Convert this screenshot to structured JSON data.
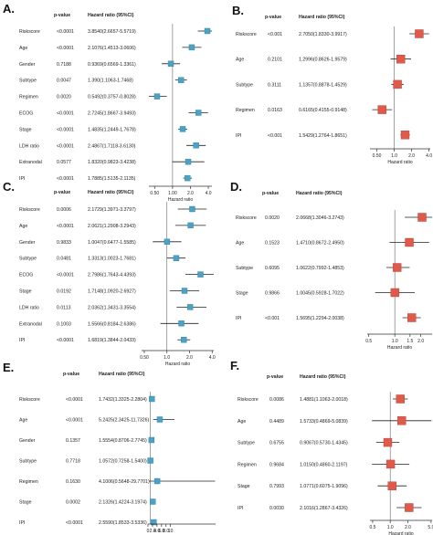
{
  "chart_data": [
    {
      "type": "forest",
      "panel_label": "A.",
      "header_p": "p-value",
      "header_hr": "Hazard ratio (95%CI)",
      "xlabel": "Hazard ratio",
      "scale": "log",
      "xlim": [
        0.4,
        4.6
      ],
      "ticks": [
        0.5,
        1.0,
        2.0,
        4.0
      ],
      "tick_labels": [
        "0.50",
        "1.00",
        "2.0",
        "4.0"
      ],
      "marker_color": "#4aa3c4",
      "rows": [
        {
          "label": "Riskscore",
          "p": "<0.0001",
          "hr_text": "3.8540(2.6657-5.5719)",
          "hr": 3.854,
          "lo": 2.6657,
          "hi": 5.5719
        },
        {
          "label": "Age",
          "p": "<0.0001",
          "hr_text": "2.1076(1.4513-3.0606)",
          "hr": 2.1076,
          "lo": 1.4513,
          "hi": 3.0606
        },
        {
          "label": "Gender",
          "p": "0.7188",
          "hr_text": "0.9369(0.6569-1.3361)",
          "hr": 0.9369,
          "lo": 0.6569,
          "hi": 1.3361
        },
        {
          "label": "Subtype",
          "p": "0.0047",
          "hr_text": "1.390(1.1063-1.7468)",
          "hr": 1.39,
          "lo": 1.1063,
          "hi": 1.7468
        },
        {
          "label": "Regimen",
          "p": "0.0020",
          "hr_text": "0.5492(0.3757-0.8028)",
          "hr": 0.5492,
          "lo": 0.3757,
          "hi": 0.8028
        },
        {
          "label": "ECOG",
          "p": "<0.0001",
          "hr_text": "2.7245(1.8667-3.9493)",
          "hr": 2.7245,
          "lo": 1.8667,
          "hi": 3.9493
        },
        {
          "label": "Stage",
          "p": "<0.0001",
          "hr_text": "1.4835(1.2449-1.7678)",
          "hr": 1.4835,
          "lo": 1.2449,
          "hi": 1.7678
        },
        {
          "label": "LDH ratio",
          "p": "<0.0001",
          "hr_text": "2.4867(1.7118-3.6130)",
          "hr": 2.4867,
          "lo": 1.7118,
          "hi": 3.613
        },
        {
          "label": "Extranodal",
          "p": "0.0577",
          "hr_text": "1.8320(0.9823-3.4238)",
          "hr": 1.832,
          "lo": 0.9823,
          "hi": 3.4238
        },
        {
          "label": "IPI",
          "p": "<0.0001",
          "hr_text": "1.7885(1.5135-2.1135)",
          "hr": 1.7885,
          "lo": 1.5135,
          "hi": 2.1135
        }
      ]
    },
    {
      "type": "forest",
      "panel_label": "B.",
      "header_p": "p-value",
      "header_hr": "Hazard ratio (95%CI)",
      "xlabel": "Hazard ratio",
      "scale": "log",
      "xlim": [
        0.38,
        4.2
      ],
      "ticks": [
        0.5,
        1.0,
        2.0,
        4.0
      ],
      "tick_labels": [
        "0.50",
        "1.0",
        "2.0",
        "4.0"
      ],
      "marker_color": "#e05a4c",
      "rows": [
        {
          "label": "Riskscore",
          "p": "<0.001",
          "hr_text": "2.7050(1.8330-3.9917)",
          "hr": 2.705,
          "lo": 1.833,
          "hi": 3.9917
        },
        {
          "label": "Age",
          "p": "0.2101",
          "hr_text": "1.2996(0.8626-1.9579)",
          "hr": 1.2996,
          "lo": 0.8626,
          "hi": 1.9579
        },
        {
          "label": "Subtype",
          "p": "0.3111",
          "hr_text": "1.1357(0.8878-1.4529)",
          "hr": 1.1357,
          "lo": 0.8878,
          "hi": 1.4529
        },
        {
          "label": "Regimen",
          "p": "0.0163",
          "hr_text": "0.6165(0.4155-0.9148)",
          "hr": 0.6165,
          "lo": 0.4155,
          "hi": 0.9148
        },
        {
          "label": "IPI",
          "p": "<0.001",
          "hr_text": "1.5429(1.2764-1.8651)",
          "hr": 1.5429,
          "lo": 1.2764,
          "hi": 1.8651
        }
      ]
    },
    {
      "type": "forest",
      "panel_label": "C.",
      "header_p": "p-value",
      "header_hr": "Hazard ratio (95%CI)",
      "xlabel": "Hazard ratio",
      "scale": "log",
      "xlim": [
        0.46,
        4.2
      ],
      "ticks": [
        0.5,
        1.0,
        2.0,
        4.0
      ],
      "tick_labels": [
        "0.50",
        "1.0",
        "2.0",
        "4.0"
      ],
      "marker_color": "#4aa3c4",
      "rows": [
        {
          "label": "Riskscore",
          "p": "0.0006",
          "hr_text": "2.1729(1.3971-3.3797)",
          "hr": 2.1729,
          "lo": 1.3971,
          "hi": 3.3797
        },
        {
          "label": "Age",
          "p": "<0.0001",
          "hr_text": "2.0621(1.2908-3.2943)",
          "hr": 2.0621,
          "lo": 1.2908,
          "hi": 3.2943
        },
        {
          "label": "Gender",
          "p": "0.9833",
          "hr_text": "1.0047(0.6477-1.5585)",
          "hr": 1.0047,
          "lo": 0.6477,
          "hi": 1.5585
        },
        {
          "label": "Subtype",
          "p": "0.0481",
          "hr_text": "1.3313(1.0023-1.7681)",
          "hr": 1.3313,
          "lo": 1.0023,
          "hi": 1.7681
        },
        {
          "label": "ECOG",
          "p": "<0.0001",
          "hr_text": "2.7986(1.7643-4.4393)",
          "hr": 2.7986,
          "lo": 1.7643,
          "hi": 4.4393
        },
        {
          "label": "Stage",
          "p": "0.0192",
          "hr_text": "1.7148(1.0920-2.6927)",
          "hr": 1.7148,
          "lo": 1.092,
          "hi": 2.6927
        },
        {
          "label": "LDH ratio",
          "p": "0.0113",
          "hr_text": "2.0362(1.3431-3.3554)",
          "hr": 2.0362,
          "lo": 1.3431,
          "hi": 3.3554
        },
        {
          "label": "Extranodal",
          "p": "0.1003",
          "hr_text": "1.5566(0.8184-2.6386)",
          "hr": 1.5566,
          "lo": 0.8184,
          "hi": 2.6386
        },
        {
          "label": "IPI",
          "p": "<0.0001",
          "hr_text": "1.6819(1.3844-2.0433)",
          "hr": 1.6819,
          "lo": 1.3844,
          "hi": 2.0433
        }
      ]
    },
    {
      "type": "forest",
      "panel_label": "D.",
      "header_p": "p-value",
      "header_hr": "Hazard ratio (95%CI)",
      "xlabel": "Hazard ratio",
      "scale": "log",
      "xlim": [
        0.48,
        2.7
      ],
      "ticks": [
        0.5,
        1.0,
        1.5,
        2.0
      ],
      "tick_labels": [
        "0.5",
        "1.0",
        "1.5",
        "2.0"
      ],
      "marker_color": "#e05a4c",
      "rows": [
        {
          "label": "Riskscore",
          "p": "0.0020",
          "hr_text": "2.0668(1.3046-3.2743)",
          "hr": 2.0668,
          "lo": 1.3046,
          "hi": 3.2743
        },
        {
          "label": "Age",
          "p": "0.1523",
          "hr_text": "1.4710(0.8672-2.4950)",
          "hr": 1.471,
          "lo": 0.8672,
          "hi": 2.495
        },
        {
          "label": "Subtype",
          "p": "0.6095",
          "hr_text": "1.0622(0.7992-1.4853)",
          "hr": 1.0622,
          "lo": 0.7992,
          "hi": 1.4853
        },
        {
          "label": "Stage",
          "p": "0.9866",
          "hr_text": "1.0045(0.5928-1.7022)",
          "hr": 1.0045,
          "lo": 0.5928,
          "hi": 1.7022
        },
        {
          "label": "IPI",
          "p": "<0.001",
          "hr_text": "1.5695(1.2294-2.0038)",
          "hr": 1.5695,
          "lo": 1.2294,
          "hi": 2.0038
        }
      ]
    },
    {
      "type": "forest",
      "panel_label": "E.",
      "header_p": "p-value",
      "header_hr": "Hazard ratio (95%CI)",
      "xlabel": "Hazard ratio",
      "scale": "linear",
      "xlim": [
        0,
        30
      ],
      "ticks": [
        0,
        2,
        4,
        6,
        8,
        10
      ],
      "tick_labels": [
        "0",
        "2.0",
        "4.0",
        "6.0",
        "8.0",
        "10"
      ],
      "marker_color": "#4aa3c4",
      "rows": [
        {
          "label": "Riskscore",
          "p": "<0.0001",
          "hr_text": "1.7432(1.3325-2.2804)",
          "hr": 1.7432,
          "lo": 1.3325,
          "hi": 2.2804
        },
        {
          "label": "Age",
          "p": "<0.0001",
          "hr_text": "5.2425(2.3425-11.7326)",
          "hr": 5.2425,
          "lo": 2.3425,
          "hi": 11.7326
        },
        {
          "label": "Gender",
          "p": "0.1357",
          "hr_text": "1.5554(0.8706-2.7745)",
          "hr": 1.5554,
          "lo": 0.8706,
          "hi": 2.7745
        },
        {
          "label": "Subtype",
          "p": "0.7718",
          "hr_text": "1.0572(0.7258-1.5400)",
          "hr": 1.0572,
          "lo": 0.7258,
          "hi": 1.54
        },
        {
          "label": "Regimen",
          "p": "0.1630",
          "hr_text": "4.1006(0.5648-29.7701)",
          "hr": 4.1006,
          "lo": 0.5648,
          "hi": 29.7701
        },
        {
          "label": "Stage",
          "p": "0.0002",
          "hr_text": "2.1326(1.4224-3.1974)",
          "hr": 2.1326,
          "lo": 1.4224,
          "hi": 3.1974
        },
        {
          "label": "IPI",
          "p": "<0.0001",
          "hr_text": "2.5590(1.8533-3.5336)",
          "hr": 2.559,
          "lo": 1.8533,
          "hi": 3.5336
        }
      ]
    },
    {
      "type": "forest",
      "panel_label": "F.",
      "header_p": "p-value",
      "header_hr": "Hazard ratio (95%CI)",
      "xlabel": "Hazard ratio",
      "scale": "log",
      "xlim": [
        0.45,
        5.2
      ],
      "ticks": [
        0.5,
        1.0,
        2.0,
        5.0
      ],
      "tick_labels": [
        "0.5",
        "1.0",
        "2.0",
        "5.0"
      ],
      "marker_color": "#e05a4c",
      "rows": [
        {
          "label": "Riskscore",
          "p": "0.0086",
          "hr_text": "1.4881(1.1063-2.0018)",
          "hr": 1.4881,
          "lo": 1.1063,
          "hi": 2.0018
        },
        {
          "label": "Age",
          "p": "0.4489",
          "hr_text": "1.5733(0.4869-5.0839)",
          "hr": 1.5733,
          "lo": 0.4869,
          "hi": 5.0839
        },
        {
          "label": "Subtype",
          "p": "0.6755",
          "hr_text": "0.9067(0.5730-1.4345)",
          "hr": 0.9067,
          "lo": 0.573,
          "hi": 1.4345
        },
        {
          "label": "Regimen",
          "p": "0.9684",
          "hr_text": "1.0150(0.4860-2.1197)",
          "hr": 1.015,
          "lo": 0.486,
          "hi": 2.1197
        },
        {
          "label": "Stage",
          "p": "0.7993",
          "hr_text": "1.0771(0.6075-1.9096)",
          "hr": 1.0771,
          "lo": 0.6075,
          "hi": 1.9096
        },
        {
          "label": "IPI",
          "p": "0.0030",
          "hr_text": "2.1016(1.2867-3.4326)",
          "hr": 2.1016,
          "lo": 1.2867,
          "hi": 3.4326
        }
      ]
    }
  ]
}
